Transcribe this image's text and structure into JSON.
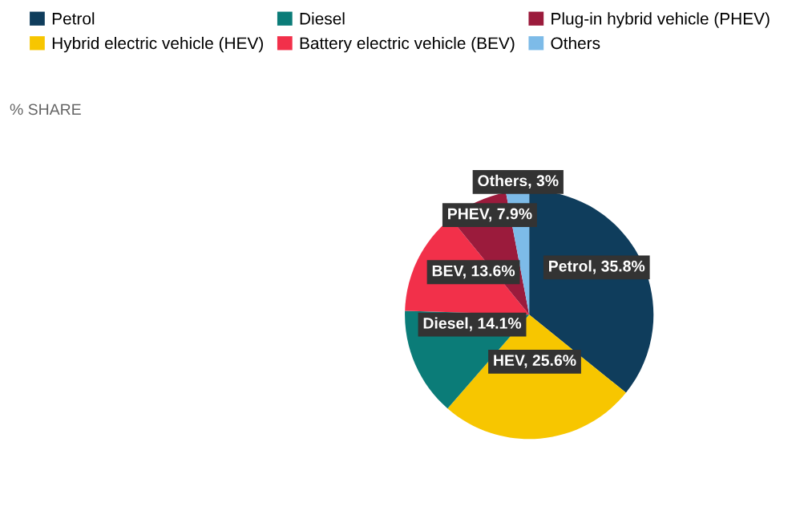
{
  "chart_data": {
    "type": "pie",
    "subtitle": "% SHARE",
    "categories": [
      "Petrol",
      "Hybrid electric vehicle (HEV)",
      "Diesel",
      "Battery electric vehicle (BEV)",
      "Plug-in hybrid vehicle (PHEV)",
      "Others"
    ],
    "values": [
      35.8,
      25.6,
      14.1,
      13.6,
      7.9,
      3
    ],
    "colors": [
      "#0f3d5c",
      "#f7c600",
      "#0b7c78",
      "#f2304a",
      "#9b1b3c",
      "#7dbbe8"
    ],
    "value_labels": [
      "Petrol, 35.8%",
      "HEV, 25.6%",
      "Diesel, 14.1%",
      "BEV, 13.6%",
      "PHEV, 7.9%",
      "Others, 3%"
    ],
    "legend": "top"
  }
}
